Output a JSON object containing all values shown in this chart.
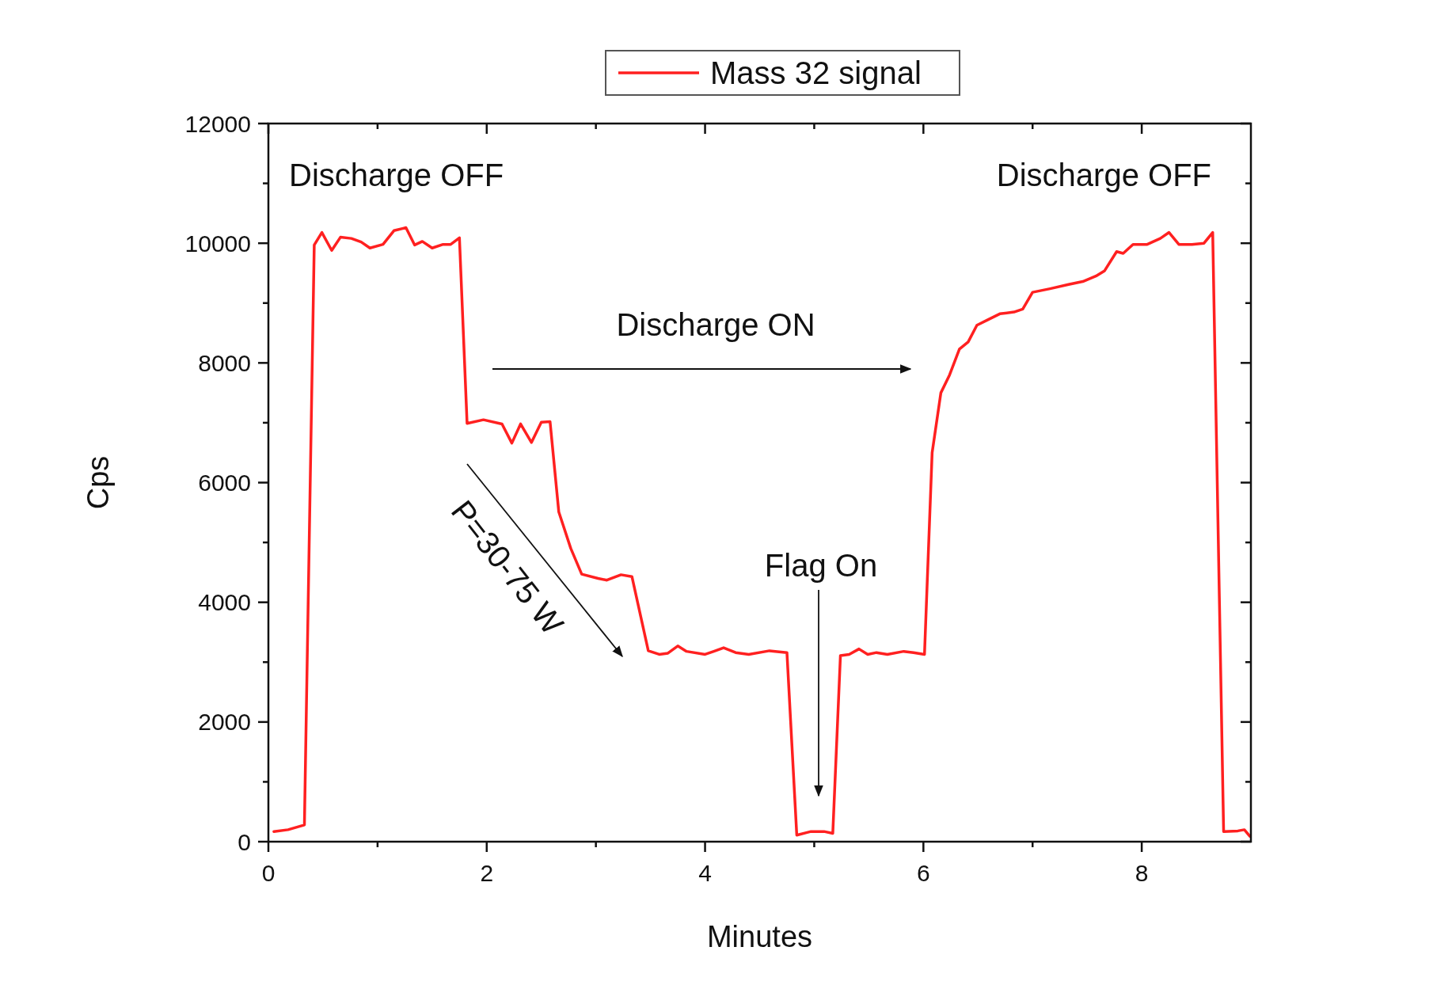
{
  "chart_data": {
    "type": "line",
    "xlabel": "Minutes",
    "ylabel": "Cps",
    "legend": "top",
    "marker": "none",
    "line_style": "solid",
    "grid": false,
    "xlim": [
      0,
      9
    ],
    "xticks": [
      0,
      {
        "value": 1,
        "label": null
      },
      2,
      {
        "value": 3,
        "label": null
      },
      4,
      {
        "value": 5,
        "label": null
      },
      6,
      {
        "value": 7,
        "label": null
      },
      8
    ],
    "ylim": [
      0,
      12000
    ],
    "yticks": [
      0,
      {
        "value": 1000,
        "label": null
      },
      2000,
      {
        "value": 3000,
        "label": null
      },
      4000,
      {
        "value": 5000,
        "label": null
      },
      6000,
      {
        "value": 7000,
        "label": null
      },
      8000,
      {
        "value": 9000,
        "label": null
      },
      10000,
      {
        "value": 11000,
        "label": null
      },
      12000
    ],
    "annotations": [
      "Discharge OFF",
      "Discharge OFF",
      "Discharge ON",
      "P=30-75 W",
      "Flag On"
    ],
    "series": [
      {
        "name": "Mass 32 signal",
        "color": "#ff2020",
        "x": [
          0.05,
          0.18,
          0.33,
          0.42,
          0.49,
          0.58,
          0.66,
          0.76,
          0.85,
          0.93,
          1.05,
          1.15,
          1.26,
          1.34,
          1.41,
          1.5,
          1.6,
          1.67,
          1.75,
          1.82,
          1.97,
          2.14,
          2.23,
          2.31,
          2.41,
          2.5,
          2.58,
          2.66,
          2.77,
          2.87,
          3.02,
          3.1,
          3.23,
          3.33,
          3.48,
          3.58,
          3.66,
          3.75,
          3.83,
          4.0,
          4.08,
          4.17,
          4.28,
          4.4,
          4.59,
          4.75,
          4.84,
          4.97,
          5.09,
          5.17,
          5.24,
          5.32,
          5.41,
          5.49,
          5.57,
          5.67,
          5.82,
          5.91,
          6.01,
          6.08,
          6.16,
          6.24,
          6.33,
          6.41,
          6.49,
          6.59,
          6.7,
          6.83,
          6.91,
          7.0,
          7.16,
          7.33,
          7.46,
          7.58,
          7.66,
          7.77,
          7.83,
          7.92,
          8.05,
          8.17,
          8.25,
          8.34,
          8.46,
          8.57,
          8.65,
          8.75,
          8.88,
          8.94,
          8.99
        ],
        "values": [
          170,
          200,
          280,
          9970,
          10180,
          9880,
          10100,
          10080,
          10020,
          9920,
          9980,
          10210,
          10260,
          9970,
          10030,
          9920,
          9980,
          9980,
          10090,
          6990,
          7050,
          6980,
          6660,
          6980,
          6670,
          7010,
          7020,
          5510,
          4900,
          4470,
          4400,
          4370,
          4460,
          4430,
          3190,
          3130,
          3150,
          3270,
          3180,
          3130,
          3180,
          3240,
          3160,
          3130,
          3190,
          3160,
          110,
          170,
          170,
          140,
          3110,
          3130,
          3220,
          3130,
          3160,
          3130,
          3180,
          3160,
          3130,
          6500,
          7500,
          7800,
          8230,
          8350,
          8630,
          8720,
          8820,
          8850,
          8900,
          9180,
          9240,
          9310,
          9360,
          9450,
          9540,
          9860,
          9830,
          9980,
          9980,
          10080,
          10180,
          9980,
          9980,
          10000,
          10180,
          170,
          180,
          200,
          90
        ]
      }
    ]
  }
}
